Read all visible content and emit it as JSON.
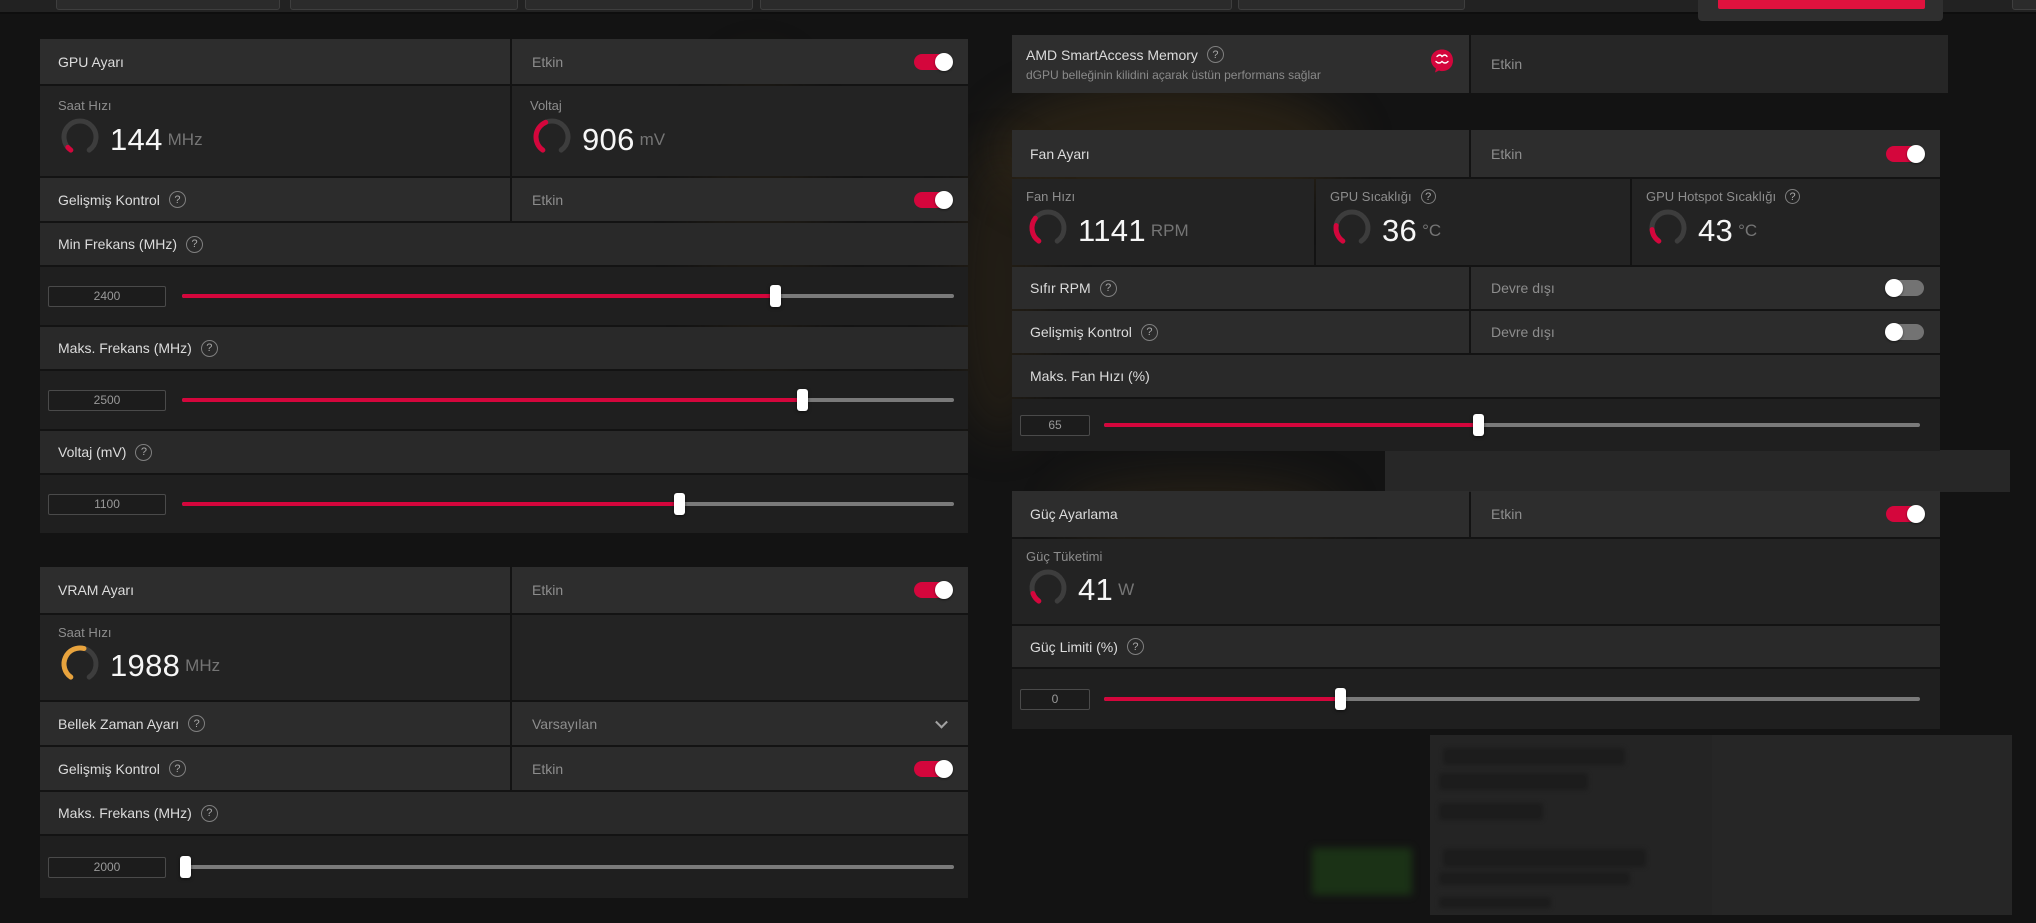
{
  "colors": {
    "accent": "#d4063c",
    "amber": "#e8a33d",
    "apply_button": "#e0123e"
  },
  "icons": {
    "help": "?"
  },
  "gpu": {
    "title": "GPU Ayarı",
    "status": "Etkin",
    "enabled": true,
    "clock": {
      "label": "Saat Hızı",
      "value": "144",
      "unit": "MHz",
      "fraction": 0.05,
      "color": "#d4063c"
    },
    "voltage": {
      "label": "Voltaj",
      "value": "906",
      "unit": "mV",
      "fraction": 0.42,
      "color": "#d4063c"
    },
    "advanced": {
      "label": "Gelişmiş Kontrol",
      "status": "Etkin",
      "enabled": true
    },
    "min_freq": {
      "label": "Min Frekans (MHz)",
      "value": "2400",
      "fraction": 0.77
    },
    "max_freq": {
      "label": "Maks. Frekans (MHz)",
      "value": "2500",
      "fraction": 0.805
    },
    "voltage_slider": {
      "label": "Voltaj (mV)",
      "value": "1100",
      "fraction": 0.645
    }
  },
  "vram": {
    "title": "VRAM Ayarı",
    "status": "Etkin",
    "enabled": true,
    "clock": {
      "label": "Saat Hızı",
      "value": "1988",
      "unit": "MHz",
      "fraction": 0.55,
      "color": "#e8a33d"
    },
    "memory_timing": {
      "label": "Bellek Zaman Ayarı",
      "value": "Varsayılan"
    },
    "advanced": {
      "label": "Gelişmiş Kontrol",
      "status": "Etkin",
      "enabled": true
    },
    "max_freq": {
      "label": "Maks. Frekans (MHz)",
      "value": "2000",
      "fraction": 0.005
    }
  },
  "sam": {
    "title": "AMD SmartAccess Memory",
    "subtitle": "dGPU belleğinin kilidini açarak üstün performans sağlar",
    "status": "Etkin"
  },
  "fan": {
    "title": "Fan Ayarı",
    "status": "Etkin",
    "enabled": true,
    "fan_speed": {
      "label": "Fan Hızı",
      "value": "1141",
      "unit": "RPM",
      "fraction": 0.32,
      "color": "#d4063c"
    },
    "gpu_temp": {
      "label": "GPU Sıcaklığı",
      "value": "36",
      "unit": "°C",
      "fraction": 0.22,
      "color": "#d4063c"
    },
    "hotspot_temp": {
      "label": "GPU Hotspot Sıcaklığı",
      "value": "43",
      "unit": "°C",
      "fraction": 0.17,
      "color": "#d4063c"
    },
    "zero_rpm": {
      "label": "Sıfır RPM",
      "status": "Devre dışı",
      "enabled": false
    },
    "advanced": {
      "label": "Gelişmiş Kontrol",
      "status": "Devre dışı",
      "enabled": false
    },
    "max_fan": {
      "label": "Maks. Fan Hızı (%)",
      "value": "65",
      "fraction": 0.46
    }
  },
  "power": {
    "title": "Güç Ayarlama",
    "status": "Etkin",
    "enabled": true,
    "consumption": {
      "label": "Güç Tüketimi",
      "value": "41",
      "unit": "W",
      "fraction": 0.12,
      "color": "#d4063c"
    },
    "limit": {
      "label": "Güç Limiti (%)",
      "value": "0",
      "fraction": 0.29
    }
  }
}
